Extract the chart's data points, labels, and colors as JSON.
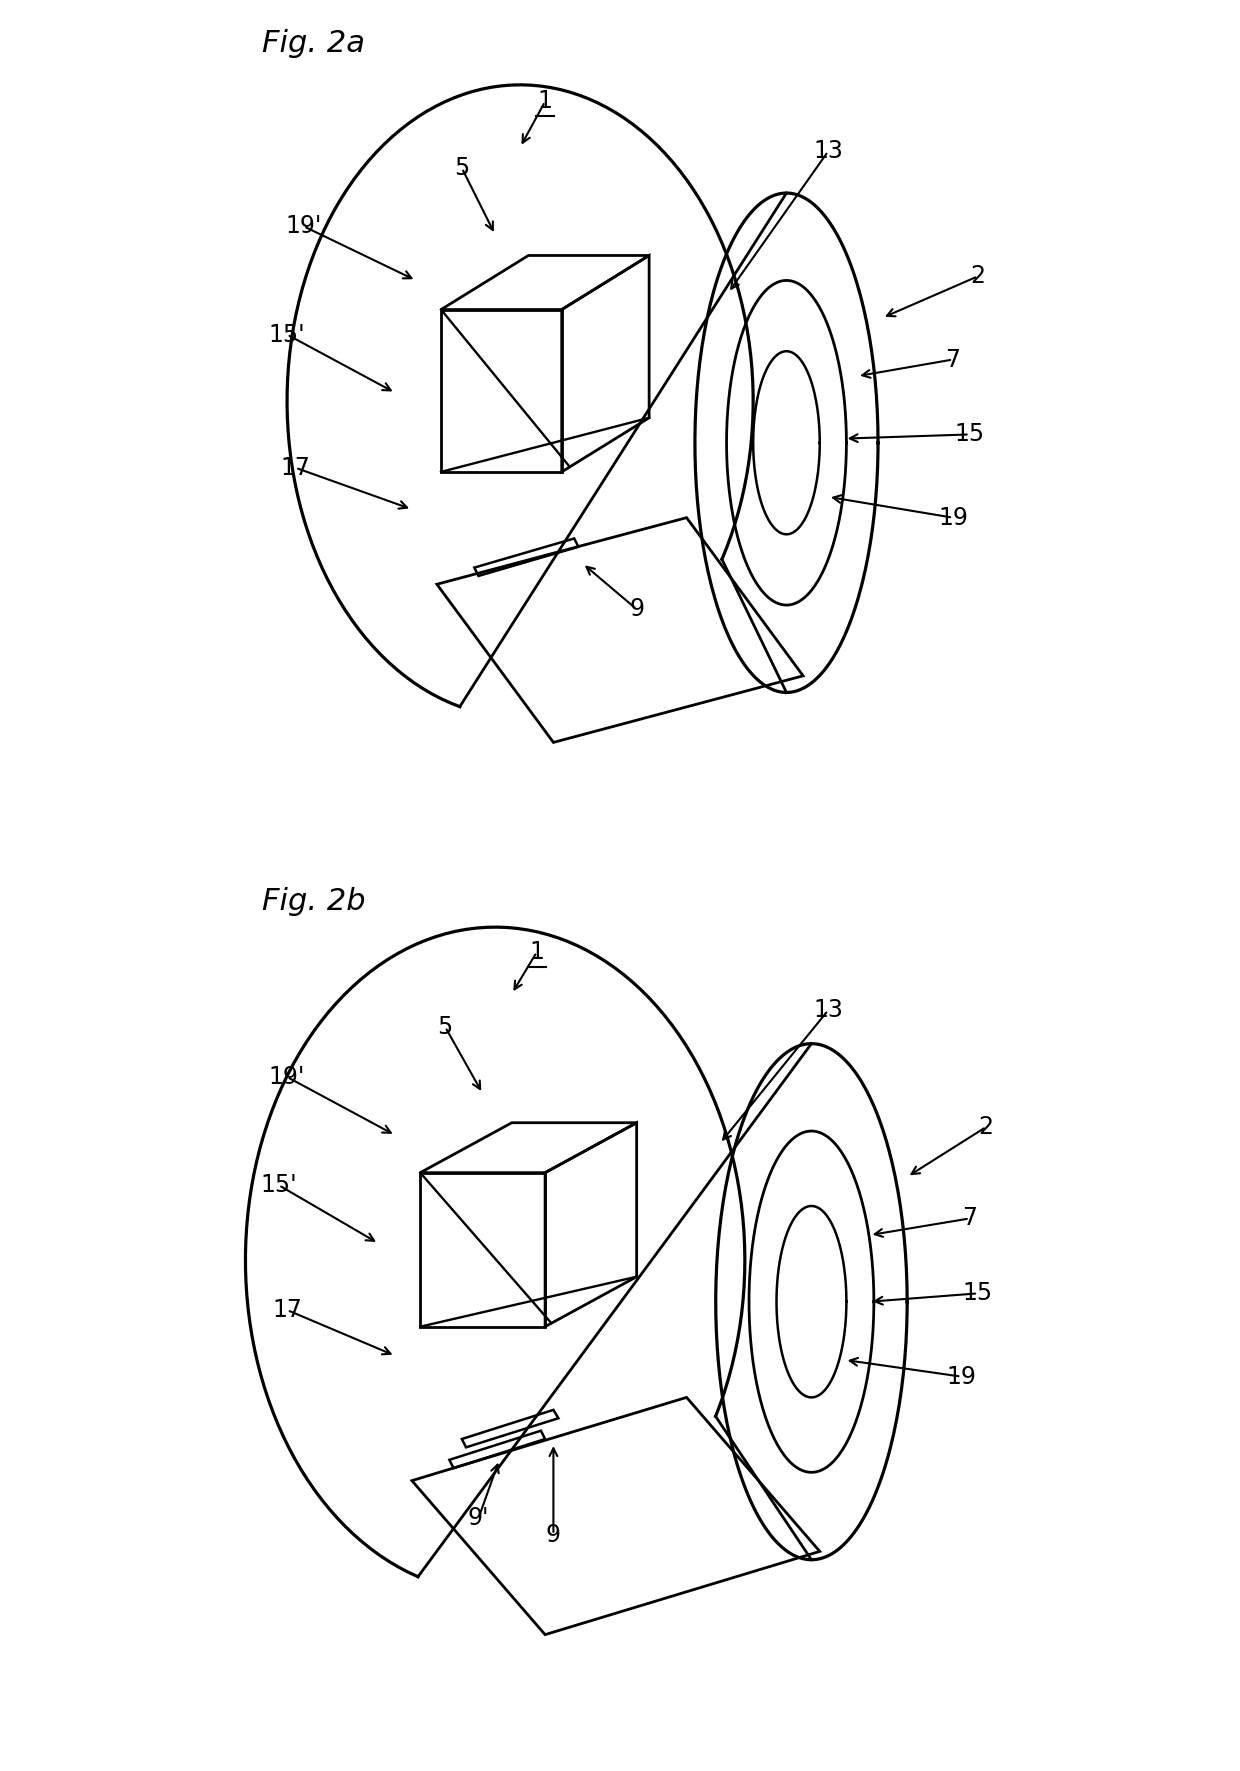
{
  "background_color": "#ffffff",
  "fig_title_a": "Fig. 2a",
  "fig_title_b": "Fig. 2b",
  "fig_title_fontsize": 22,
  "label_fontsize": 17,
  "lw": 2.0,
  "lc": "#000000"
}
